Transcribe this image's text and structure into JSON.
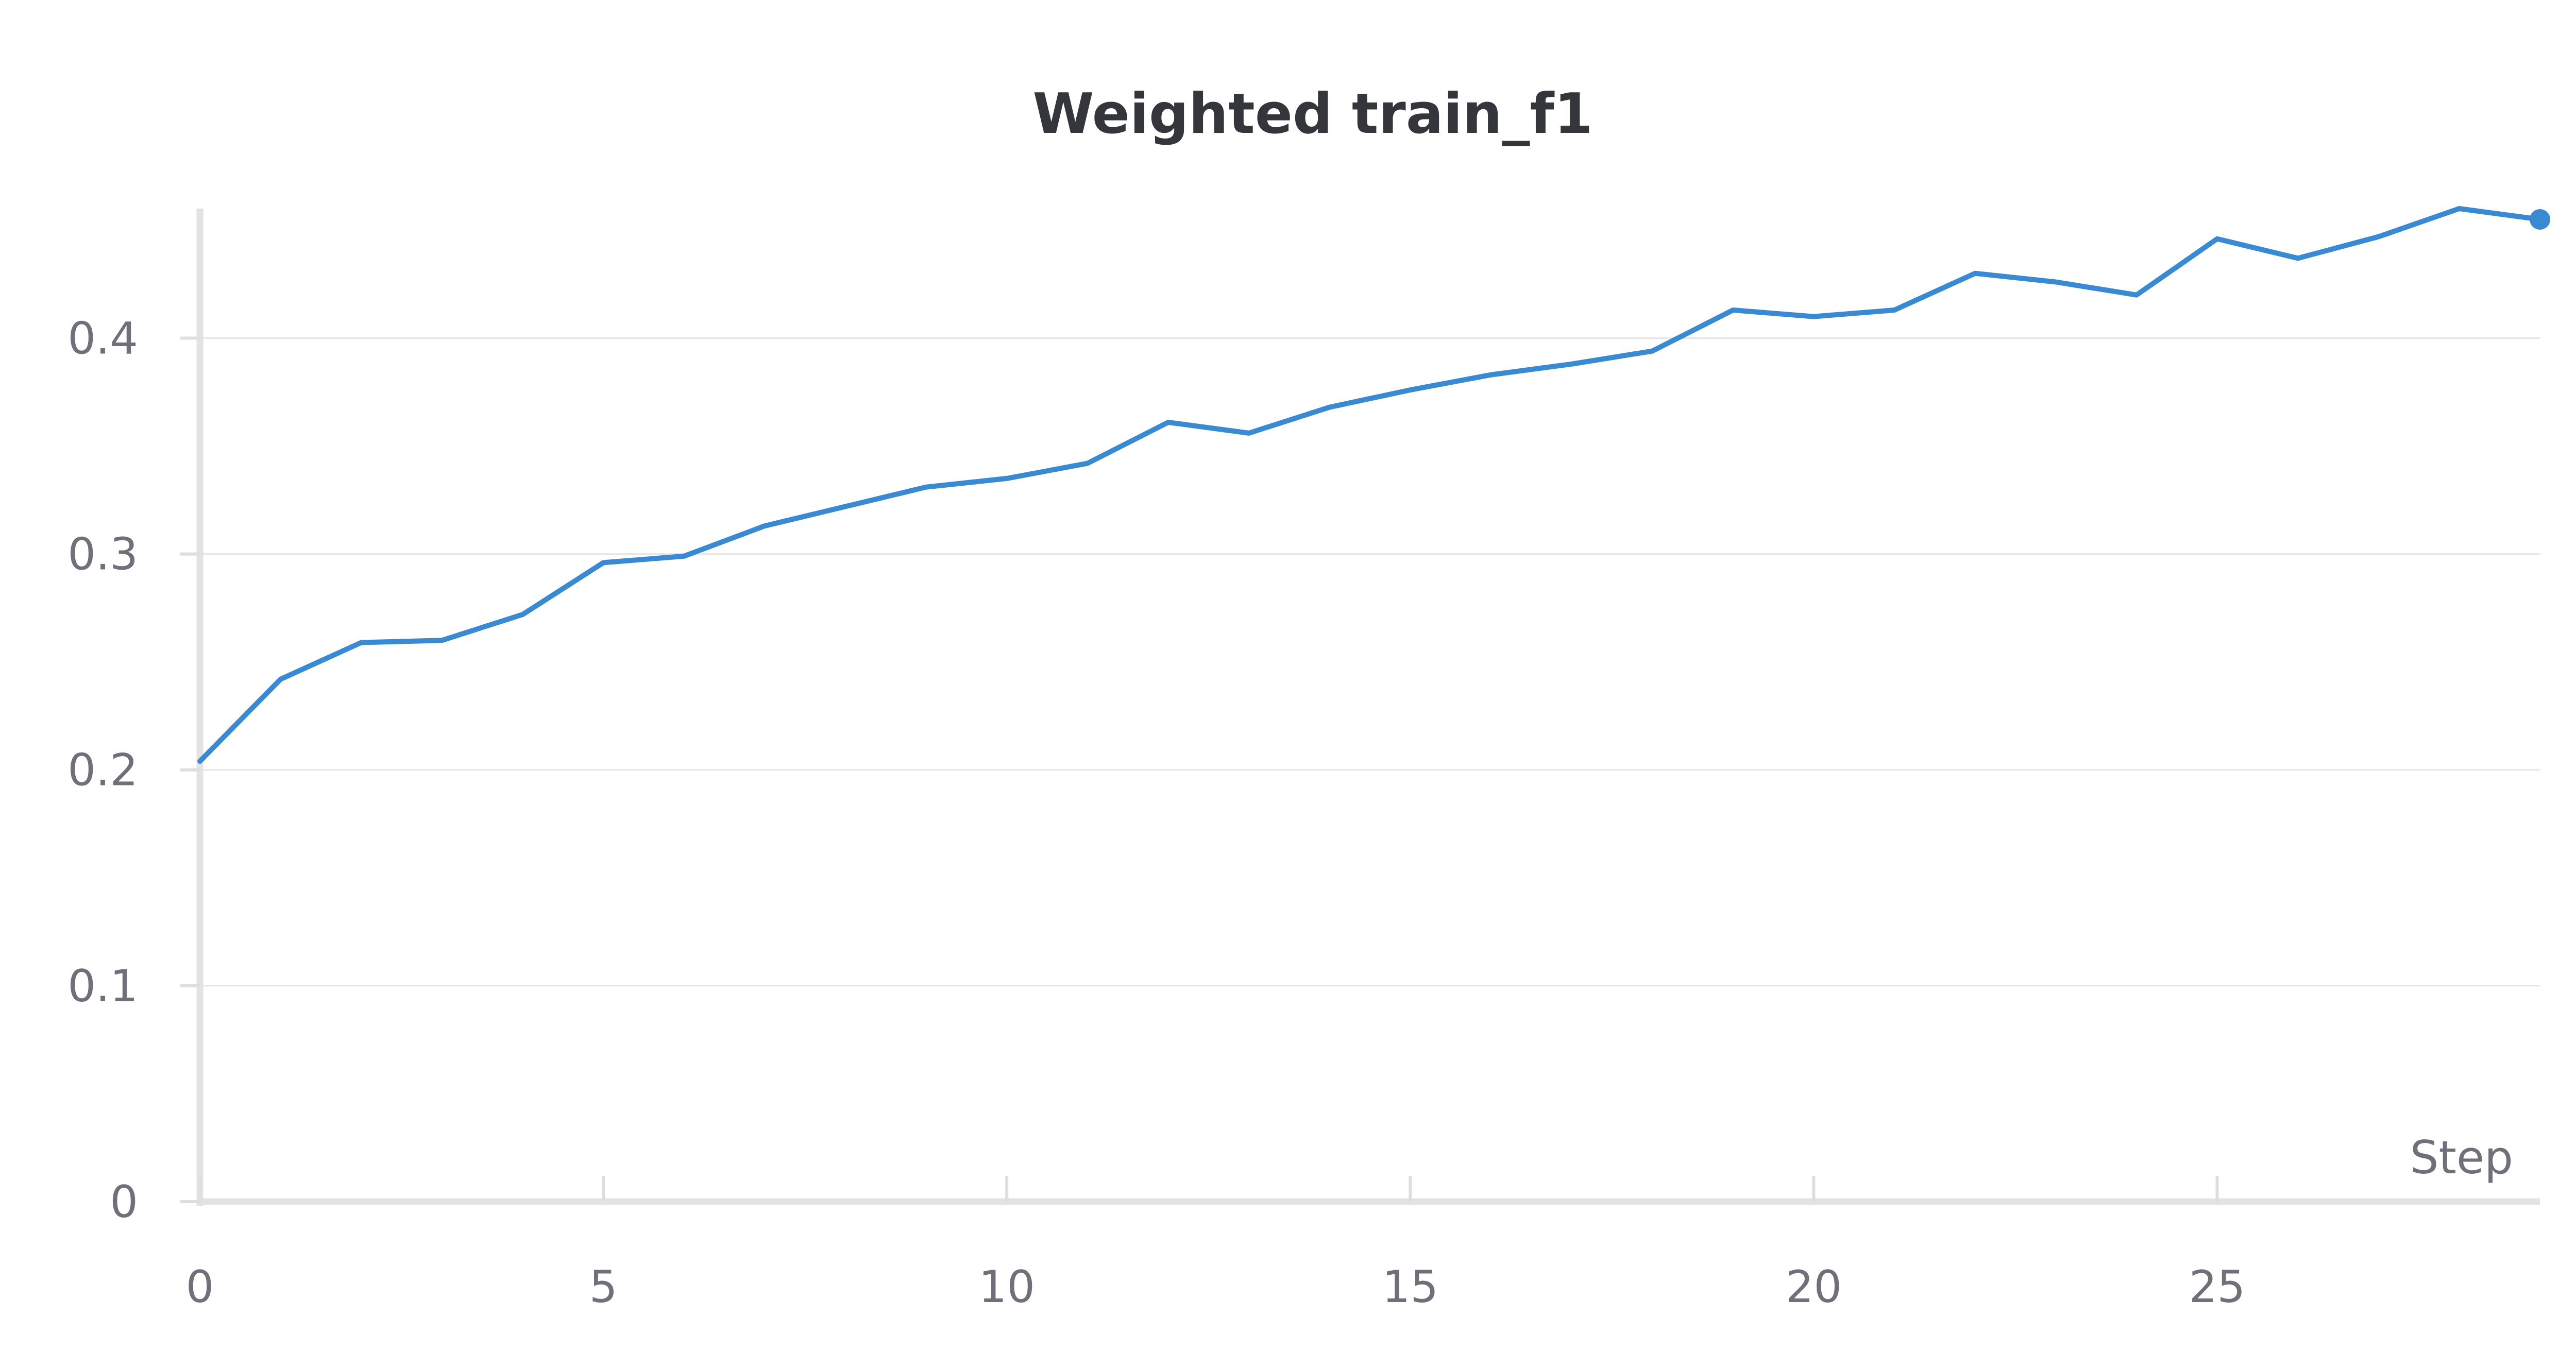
{
  "chart_data": {
    "type": "line",
    "title": "Weighted train_f1",
    "xlabel": "Step",
    "ylabel": "",
    "xlim": [
      0,
      29
    ],
    "ylim": [
      0,
      0.46
    ],
    "x_ticks": [
      "0",
      "5",
      "10",
      "15",
      "20",
      "25"
    ],
    "x_tick_values": [
      0,
      5,
      10,
      15,
      20,
      25
    ],
    "y_ticks": [
      "0",
      "0.1",
      "0.2",
      "0.3",
      "0.4"
    ],
    "y_tick_values": [
      0,
      0.1,
      0.2,
      0.3,
      0.4
    ],
    "grid": "horizontal",
    "legend": "none",
    "series": [
      {
        "color": "#3a8ad3",
        "x": [
          0,
          1,
          2,
          3,
          4,
          5,
          6,
          7,
          8,
          9,
          10,
          11,
          12,
          13,
          14,
          15,
          16,
          17,
          18,
          19,
          20,
          21,
          22,
          23,
          24,
          25,
          26,
          27,
          28,
          29
        ],
        "values": [
          0.204,
          0.242,
          0.259,
          0.26,
          0.272,
          0.296,
          0.299,
          0.313,
          0.322,
          0.331,
          0.335,
          0.342,
          0.361,
          0.356,
          0.368,
          0.376,
          0.383,
          0.388,
          0.394,
          0.413,
          0.41,
          0.413,
          0.43,
          0.426,
          0.42,
          0.446,
          0.437,
          0.447,
          0.46,
          0.455
        ],
        "last_point_marker": true
      }
    ]
  }
}
